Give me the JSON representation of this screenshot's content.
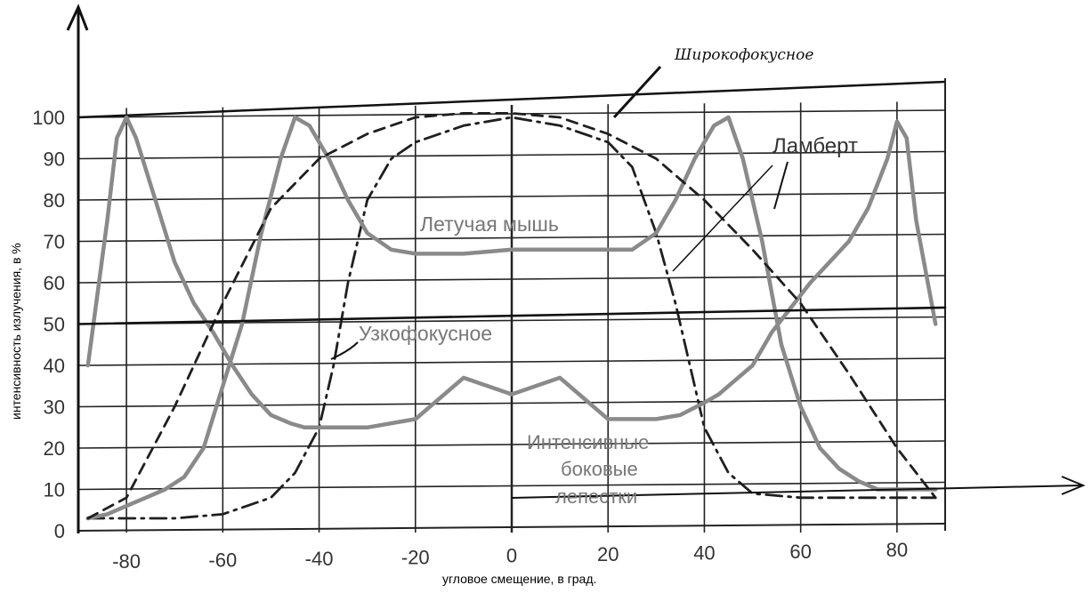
{
  "chart_data": {
    "type": "line",
    "xlabel": "угловое смещение, в град.",
    "ylabel": "интенсивность излучения, в %",
    "xlim": [
      -90,
      90
    ],
    "ylim": [
      0,
      100
    ],
    "x_ticks": [
      "-80",
      "-60",
      "-40",
      "-20",
      "0",
      "20",
      "40",
      "60",
      "80"
    ],
    "y_ticks": [
      "0",
      "10",
      "20",
      "30",
      "40",
      "50",
      "60",
      "70",
      "80",
      "90",
      "100"
    ],
    "grid": true,
    "annotations": [
      {
        "text": "Широкофокусное"
      },
      {
        "text": "Ламберт"
      },
      {
        "text": "Летучая мышь"
      },
      {
        "text": "Узкофокусное"
      },
      {
        "text": "Интенсивные"
      },
      {
        "text": "боковые"
      },
      {
        "text": "лепестки"
      }
    ],
    "series": [
      {
        "style": "dash-dot",
        "x": [
          -88,
          -80,
          -70,
          -60,
          -50,
          -45,
          -40,
          -37,
          -34,
          -30,
          -25,
          -20,
          -10,
          0,
          10,
          20,
          25,
          30,
          34,
          37,
          40,
          45,
          50,
          60,
          70,
          80,
          88
        ],
        "y": [
          3,
          3,
          3,
          4,
          8,
          14,
          25,
          40,
          60,
          80,
          90,
          94,
          98,
          100,
          98,
          94,
          88,
          72,
          55,
          40,
          25,
          14,
          9,
          8,
          8,
          8,
          8
        ]
      },
      {
        "style": "solid",
        "x": [
          -88,
          -84,
          -82,
          -80,
          -78,
          -74,
          -70,
          -66,
          -62,
          -58,
          -54,
          -50,
          -46,
          -43,
          -40,
          -36,
          -30,
          -20,
          -10,
          0,
          10,
          20,
          30,
          35,
          40,
          43,
          46,
          50,
          54,
          58,
          62,
          66,
          70,
          74,
          78,
          80,
          82,
          84,
          88
        ],
        "y": [
          40,
          75,
          95,
          100,
          95,
          80,
          65,
          55,
          48,
          40,
          33,
          28,
          26,
          25,
          25,
          25,
          25,
          27,
          37,
          33,
          37,
          27,
          27,
          28,
          31,
          33,
          36,
          40,
          48,
          54,
          60,
          65,
          70,
          78,
          90,
          99,
          95,
          75,
          50
        ]
      },
      {
        "style": "solid",
        "x": [
          -88,
          -84,
          -80,
          -76,
          -72,
          -68,
          -64,
          -60,
          -56,
          -52,
          -48,
          -45,
          -42,
          -38,
          -34,
          -30,
          -25,
          -20,
          -10,
          0,
          10,
          20,
          25,
          30,
          34,
          38,
          42,
          45,
          48,
          52,
          56,
          60,
          64,
          68,
          72,
          76,
          80,
          84,
          88
        ],
        "y": [
          3,
          4,
          6,
          8,
          10,
          13,
          20,
          35,
          50,
          72,
          90,
          100,
          98,
          90,
          80,
          72,
          68,
          67,
          67,
          68,
          68,
          68,
          68,
          72,
          80,
          90,
          98,
          100,
          90,
          70,
          45,
          30,
          20,
          15,
          12,
          10,
          10,
          10,
          10
        ]
      },
      {
        "style": "dashed",
        "x": [
          -88,
          -80,
          -70,
          -60,
          -50,
          -40,
          -30,
          -20,
          -10,
          0,
          10,
          20,
          30,
          40,
          50,
          60,
          70,
          80,
          88
        ],
        "y": [
          3,
          8,
          30,
          55,
          78,
          90,
          96,
          100,
          101,
          101,
          100,
          96,
          90,
          80,
          68,
          55,
          38,
          20,
          8
        ]
      },
      {
        "style": "solid-thick",
        "x": [
          -90,
          -45,
          0,
          45,
          90
        ],
        "y": [
          50,
          51,
          52,
          53,
          54
        ]
      }
    ]
  }
}
